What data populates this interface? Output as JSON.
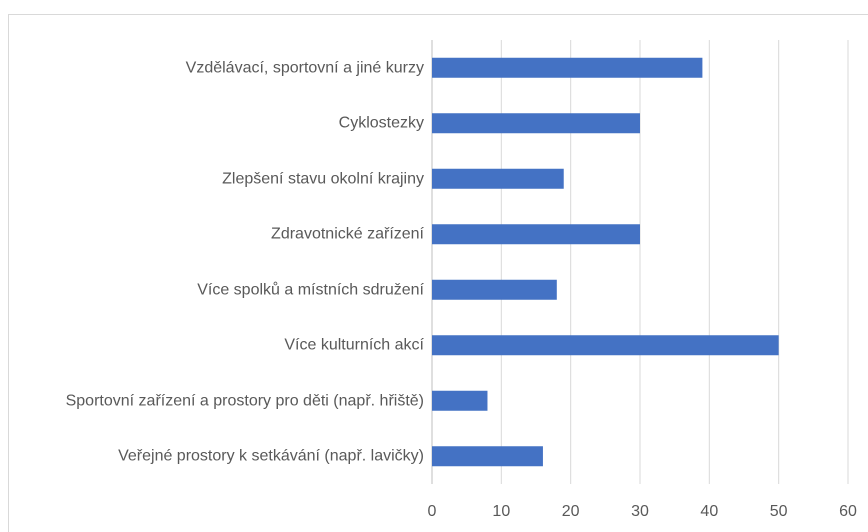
{
  "chart_data": {
    "type": "hbar",
    "categories": [
      "Vzdělávací, sportovní a jiné kurzy",
      "Cyklostezky",
      "Zlepšení stavu okolní krajiny",
      "Zdravotnické zařízení",
      "Více spolků a místních sdružení",
      "Více kulturních akcí",
      "Sportovní zařízení a prostory pro děti (např. hřiště)",
      "Veřejné prostory k setkávání (např. lavičky)"
    ],
    "values": [
      39,
      30,
      19,
      30,
      18,
      50,
      8,
      16
    ],
    "color": "#4472c4",
    "xlim": [
      0,
      60
    ],
    "xticks": [
      0,
      10,
      20,
      30,
      40,
      50,
      60
    ],
    "grid": true
  }
}
